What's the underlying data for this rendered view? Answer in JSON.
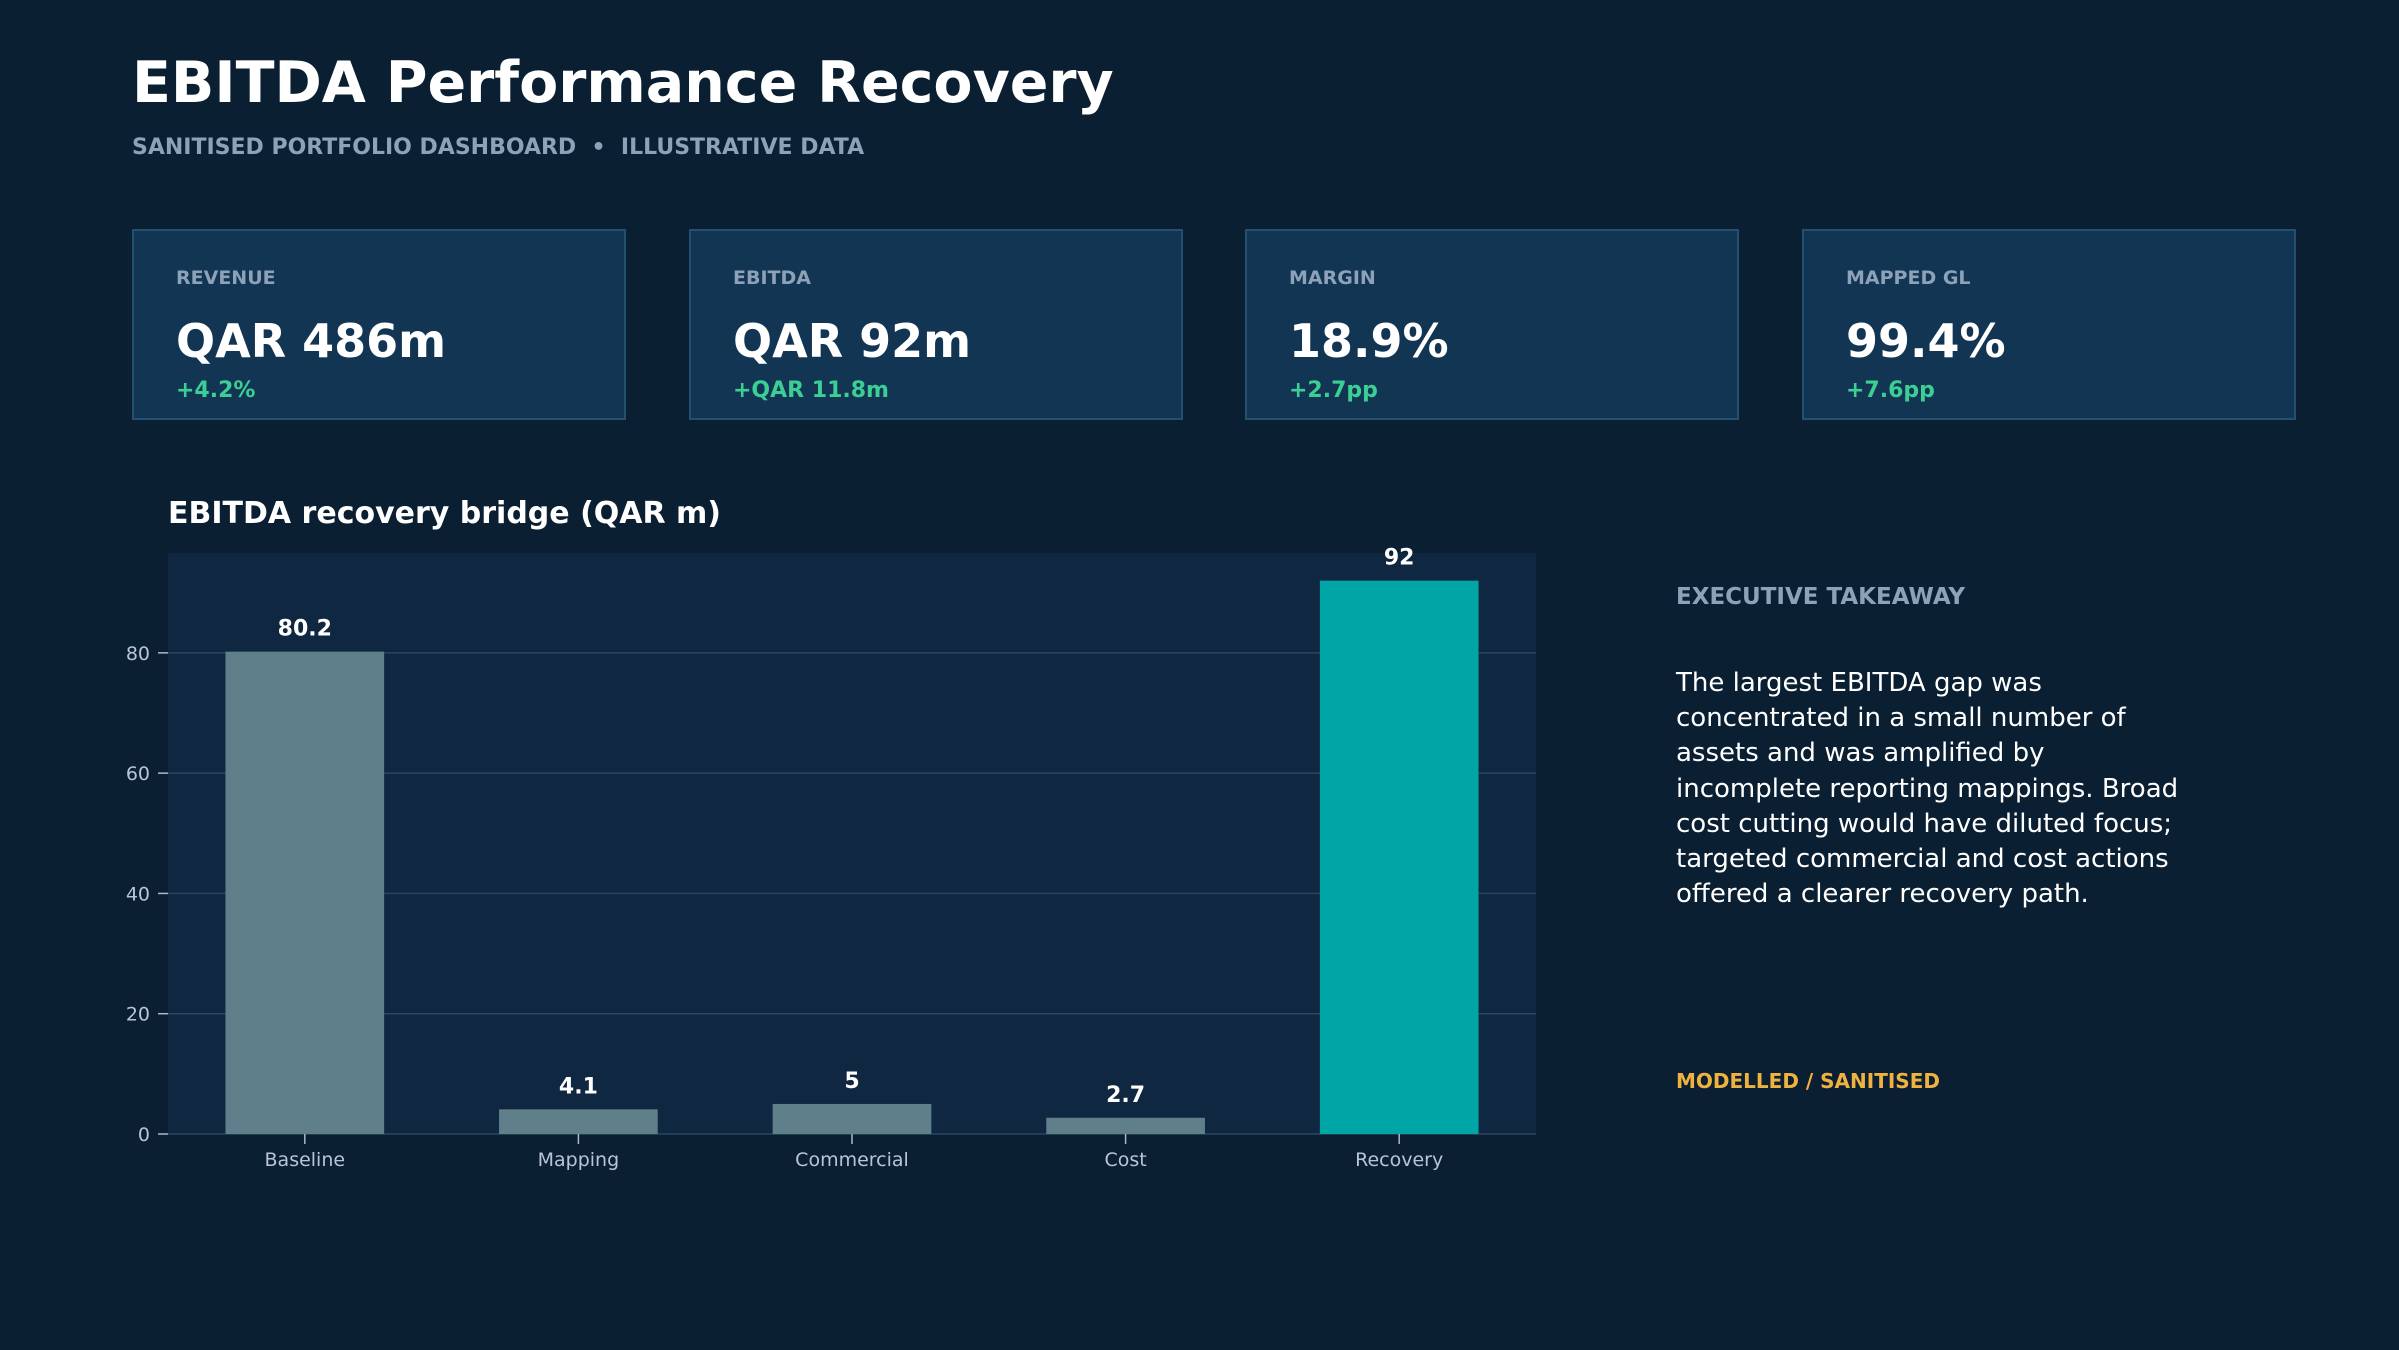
{
  "header": {
    "title": "EBITDA Performance Recovery",
    "subtitle": "SANITISED PORTFOLIO DASHBOARD  •  ILLUSTRATIVE DATA"
  },
  "kpis": [
    {
      "label": "REVENUE",
      "value": "QAR 486m",
      "delta": "+4.2%"
    },
    {
      "label": "EBITDA",
      "value": "QAR 92m",
      "delta": "+QAR 11.8m"
    },
    {
      "label": "MARGIN",
      "value": "18.9%",
      "delta": "+2.7pp"
    },
    {
      "label": "MAPPED GL",
      "value": "99.4%",
      "delta": "+7.6pp"
    }
  ],
  "takeaway": {
    "heading": "EXECUTIVE TAKEAWAY",
    "body": "The largest EBITDA gap was concentrated in a small number of assets and was amplified by incomplete reporting mappings. Broad cost cutting would have diluted focus; targeted commercial and cost actions offered a clearer recovery path.",
    "tag": "MODELLED / SANITISED"
  },
  "colors": {
    "background": "#0b1f33",
    "plot_background": "#0f2740",
    "card": "#123553",
    "bar_default": "#5f7f8a",
    "bar_highlight": "#00a6a6",
    "positive": "#3ccf95",
    "tag": "#f0b23e",
    "muted_text": "#8da2b8"
  },
  "chart_data": {
    "type": "bar",
    "title": "EBITDA recovery bridge (QAR m)",
    "categories": [
      "Baseline",
      "Mapping",
      "Commercial",
      "Cost",
      "Recovery"
    ],
    "values": [
      80.2,
      4.1,
      5,
      2.7,
      92
    ],
    "data_labels": [
      "80.2",
      "4.1",
      "5",
      "2.7",
      "92"
    ],
    "highlight_index": 4,
    "ylim": [
      0,
      96.6
    ],
    "yticks": [
      0,
      20,
      40,
      60,
      80
    ],
    "grid": true,
    "xlabel": "",
    "ylabel": ""
  }
}
